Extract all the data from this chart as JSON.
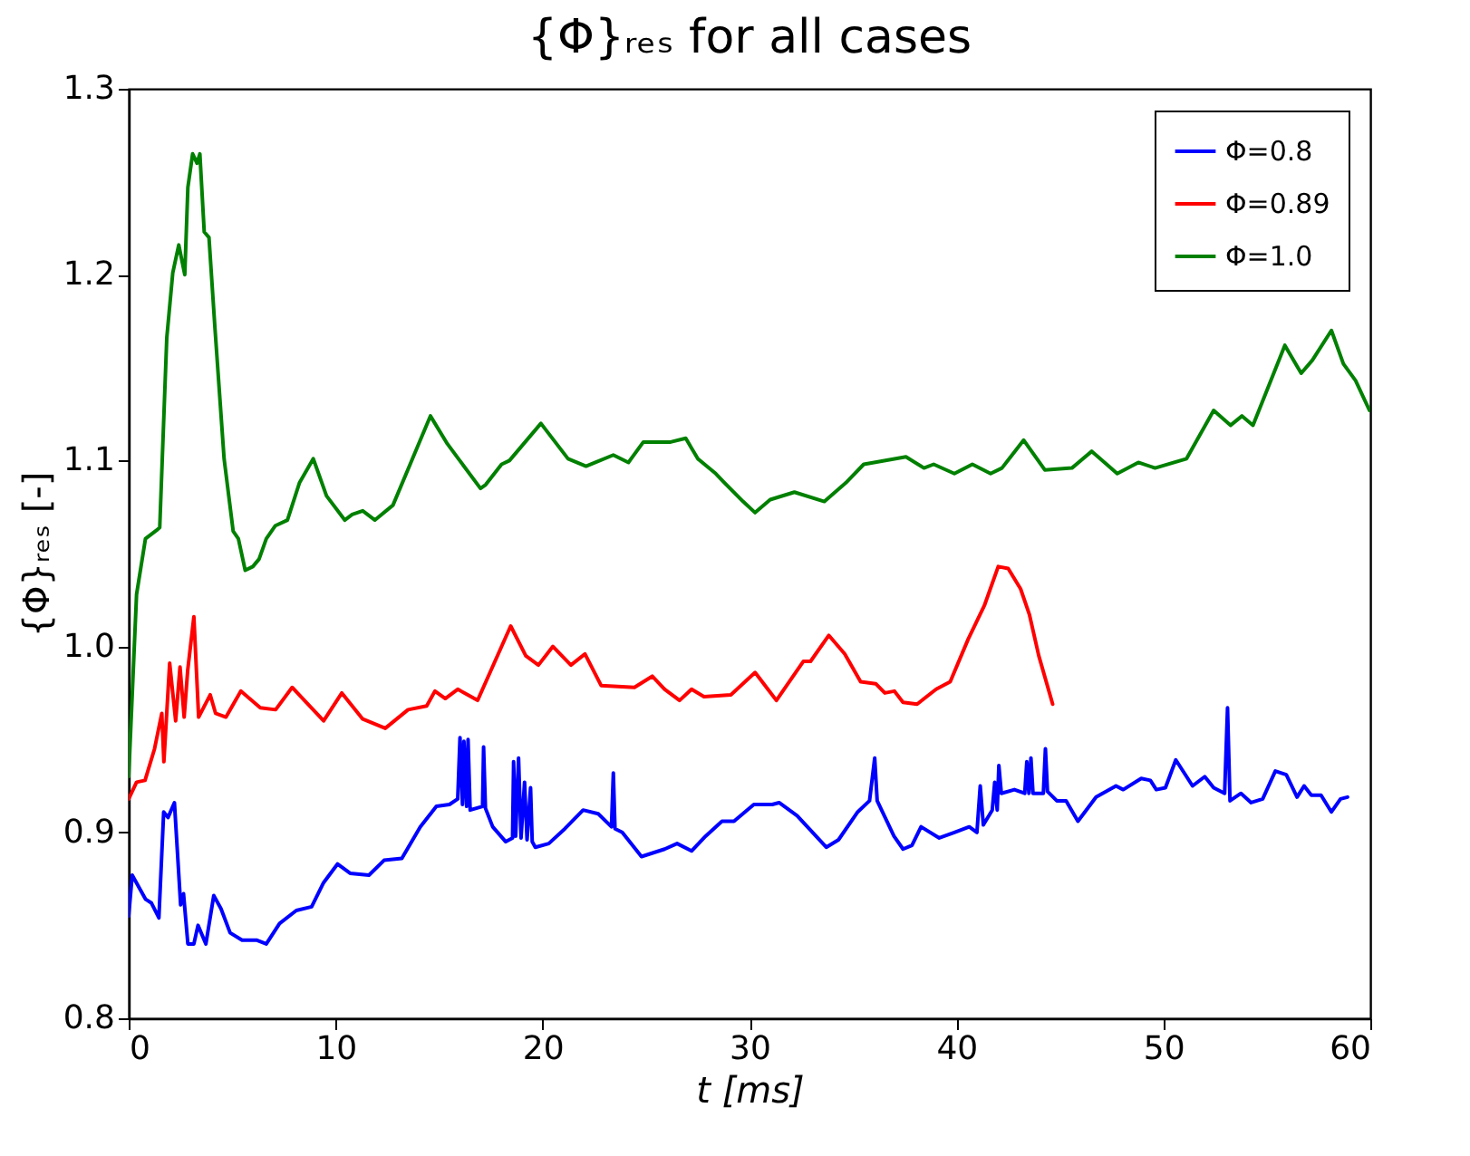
{
  "chart_data": {
    "type": "line",
    "title": "{Φ}ᵣₑₛ for all cases",
    "xlabel": "t [ms]",
    "ylabel": "{Φ}ᵣₑₛ [-]",
    "xlim": [
      0,
      60
    ],
    "xticks": [
      0,
      10,
      20,
      30,
      40,
      50,
      60
    ],
    "ylim": [
      0.8,
      1.3
    ],
    "yticks": [
      0.8,
      0.9,
      {
        "value": 1,
        "label": "1.0"
      },
      1.1,
      1.2,
      1.3
    ],
    "grid": false,
    "legend": "top right",
    "line_style": "solid",
    "marker": "none",
    "series": [
      {
        "name": "Φ=0.8",
        "color": "#0000ff",
        "x": [
          0,
          0.17,
          0.82,
          1.1,
          1.46,
          1.69,
          1.9,
          2.21,
          2.51,
          2.65,
          2.86,
          3.15,
          3.35,
          3.73,
          4.11,
          4.46,
          4.9,
          5.48,
          6.2,
          6.65,
          7.29,
          8.1,
          8.84,
          9.42,
          10.09,
          10.7,
          11.61,
          12.34,
          13.2,
          14.09,
          14.87,
          15.5,
          15.9,
          16.01,
          16.13,
          16.2,
          16.33,
          16.4,
          16.5,
          17.1,
          17.15,
          17.24,
          17.59,
          18.22,
          18.55,
          18.6,
          18.7,
          18.84,
          18.96,
          19.13,
          19.25,
          19.42,
          19.5,
          19.65,
          20.3,
          21.08,
          21.96,
          22.69,
          23.33,
          23.42,
          23.5,
          23.85,
          24.78,
          25.9,
          26.5,
          27.2,
          27.88,
          28.67,
          29.25,
          30.21,
          31.1,
          31.43,
          32.3,
          33.71,
          34.3,
          35.23,
          35.8,
          36.05,
          36.17,
          36.98,
          37.42,
          37.85,
          38.29,
          39.17,
          39.9,
          40.62,
          40.99,
          41.15,
          41.3,
          41.73,
          41.85,
          41.97,
          42.05,
          42.17,
          42.8,
          43.3,
          43.4,
          43.5,
          43.6,
          43.7,
          44.2,
          44.3,
          44.4,
          44.85,
          45.3,
          45.87,
          46.75,
          47.71,
          48.06,
          48.93,
          49.37,
          49.66,
          50.1,
          50.6,
          51.41,
          52.0,
          52.43,
          52.96,
          53.1,
          53.22,
          53.75,
          54.24,
          54.8,
          55.41,
          55.94,
          56.46,
          56.8,
          57.15,
          57.62,
          58.12,
          58.56,
          58.9
        ],
        "values": [
          0.855,
          0.877,
          0.864,
          0.862,
          0.854,
          0.911,
          0.908,
          0.916,
          0.861,
          0.867,
          0.84,
          0.84,
          0.85,
          0.84,
          0.866,
          0.859,
          0.846,
          0.842,
          0.842,
          0.84,
          0.851,
          0.858,
          0.86,
          0.873,
          0.883,
          0.878,
          0.877,
          0.885,
          0.886,
          0.903,
          0.914,
          0.915,
          0.918,
          0.951,
          0.915,
          0.949,
          0.914,
          0.95,
          0.912,
          0.914,
          0.946,
          0.913,
          0.903,
          0.895,
          0.897,
          0.938,
          0.898,
          0.94,
          0.897,
          0.927,
          0.896,
          0.924,
          0.895,
          0.892,
          0.894,
          0.902,
          0.912,
          0.91,
          0.903,
          0.932,
          0.902,
          0.9,
          0.887,
          0.891,
          0.894,
          0.89,
          0.898,
          0.906,
          0.906,
          0.915,
          0.915,
          0.916,
          0.909,
          0.892,
          0.896,
          0.911,
          0.917,
          0.94,
          0.917,
          0.898,
          0.891,
          0.893,
          0.903,
          0.897,
          0.9,
          0.903,
          0.9,
          0.925,
          0.904,
          0.912,
          0.927,
          0.912,
          0.936,
          0.921,
          0.923,
          0.921,
          0.938,
          0.921,
          0.94,
          0.921,
          0.921,
          0.945,
          0.922,
          0.917,
          0.917,
          0.906,
          0.919,
          0.925,
          0.923,
          0.929,
          0.928,
          0.923,
          0.924,
          0.939,
          0.925,
          0.93,
          0.924,
          0.921,
          0.967,
          0.917,
          0.921,
          0.916,
          0.918,
          0.933,
          0.931,
          0.919,
          0.925,
          0.92,
          0.92,
          0.911,
          0.918,
          0.919
        ]
      },
      {
        "name": "Φ=0.89",
        "color": "#ff0000",
        "x": [
          0,
          0.38,
          0.79,
          1.25,
          1.6,
          1.7,
          1.98,
          2.27,
          2.48,
          2.68,
          2.85,
          3.15,
          3.38,
          3.94,
          4.2,
          4.7,
          5.42,
          6.36,
          7.1,
          7.9,
          9.42,
          10.3,
          11.31,
          12.4,
          13.5,
          14.4,
          14.8,
          15.3,
          15.9,
          16.86,
          18.46,
          19.19,
          19.8,
          20.5,
          21.37,
          22.05,
          22.83,
          24.44,
          25.3,
          25.9,
          26.62,
          27.2,
          27.8,
          29.1,
          30.27,
          31.3,
          32.6,
          32.95,
          33.83,
          34.6,
          35.37,
          36.1,
          36.54,
          37.0,
          37.42,
          38.1,
          39.02,
          39.7,
          40.57,
          41.35,
          42.02,
          42.5,
          43.1,
          43.53,
          43.98,
          44.65
        ],
        "values": [
          0.918,
          0.927,
          0.928,
          0.945,
          0.964,
          0.938,
          0.991,
          0.96,
          0.989,
          0.962,
          0.987,
          1.016,
          0.962,
          0.974,
          0.964,
          0.962,
          0.976,
          0.967,
          0.966,
          0.978,
          0.96,
          0.975,
          0.961,
          0.956,
          0.966,
          0.968,
          0.976,
          0.972,
          0.977,
          0.971,
          1.011,
          0.995,
          0.99,
          1.0,
          0.99,
          0.996,
          0.979,
          0.978,
          0.984,
          0.977,
          0.971,
          0.977,
          0.973,
          0.974,
          0.986,
          0.971,
          0.992,
          0.992,
          1.006,
          0.996,
          0.981,
          0.98,
          0.975,
          0.976,
          0.97,
          0.969,
          0.977,
          0.981,
          1.004,
          1.022,
          1.043,
          1.042,
          1.031,
          1.017,
          0.995,
          0.969
        ]
      },
      {
        "name": "Φ=1.0",
        "color": "#008000",
        "x": [
          0,
          0.38,
          0.81,
          1.4,
          1.5,
          1.84,
          2.13,
          2.42,
          2.71,
          2.86,
          3.09,
          3.3,
          3.44,
          3.65,
          3.88,
          4.17,
          4.61,
          5.05,
          5.3,
          5.63,
          6.0,
          6.3,
          6.65,
          7.09,
          7.67,
          8.25,
          8.92,
          9.56,
          10.44,
          10.8,
          11.31,
          11.9,
          12.77,
          13.94,
          14.58,
          15.4,
          17.0,
          17.25,
          18.02,
          18.4,
          19.92,
          21.23,
          22.1,
          23.42,
          24.15,
          24.87,
          26.19,
          26.92,
          27.5,
          28.37,
          28.8,
          29.69,
          30.27,
          31.0,
          32.17,
          33.62,
          34.65,
          35.52,
          37.56,
          38.43,
          38.9,
          39.9,
          40.77,
          41.65,
          42.2,
          43.25,
          44.27,
          45.58,
          46.54,
          47.77,
          48.79,
          49.6,
          51.12,
          52.43,
          53.25,
          53.8,
          54.33,
          55.87,
          56.66,
          57.2,
          58.12,
          58.7,
          59.29,
          59.96
        ],
        "values": [
          0.93,
          1.028,
          1.058,
          1.063,
          1.064,
          1.166,
          1.201,
          1.216,
          1.2,
          1.247,
          1.265,
          1.26,
          1.265,
          1.223,
          1.22,
          1.171,
          1.101,
          1.062,
          1.058,
          1.041,
          1.043,
          1.047,
          1.058,
          1.065,
          1.068,
          1.088,
          1.101,
          1.081,
          1.068,
          1.071,
          1.073,
          1.068,
          1.076,
          1.107,
          1.124,
          1.109,
          1.085,
          1.087,
          1.098,
          1.1,
          1.12,
          1.101,
          1.097,
          1.103,
          1.099,
          1.11,
          1.11,
          1.112,
          1.101,
          1.093,
          1.088,
          1.078,
          1.072,
          1.079,
          1.083,
          1.078,
          1.088,
          1.098,
          1.102,
          1.096,
          1.098,
          1.093,
          1.098,
          1.093,
          1.096,
          1.111,
          1.095,
          1.096,
          1.105,
          1.093,
          1.099,
          1.096,
          1.101,
          1.127,
          1.119,
          1.124,
          1.119,
          1.162,
          1.147,
          1.154,
          1.17,
          1.152,
          1.143,
          1.127
        ]
      }
    ]
  }
}
